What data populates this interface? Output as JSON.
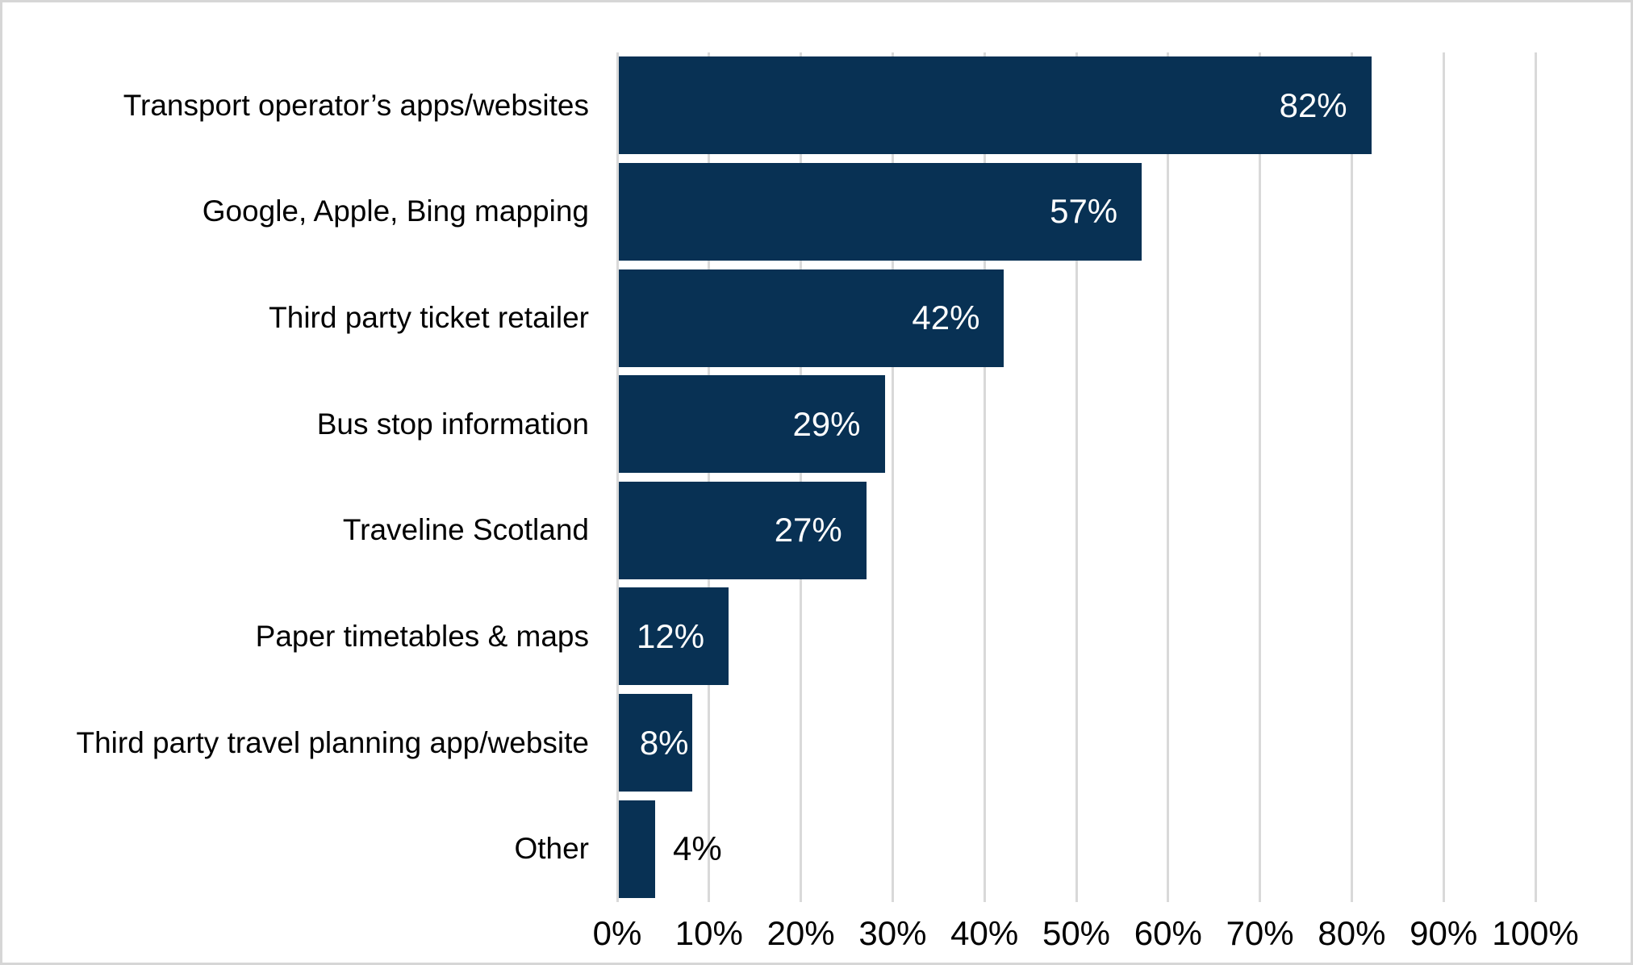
{
  "chart_data": {
    "type": "bar",
    "orientation": "horizontal",
    "title": "",
    "xlabel": "",
    "ylabel": "",
    "categories": [
      "Transport operator’s apps/websites",
      "Google, Apple, Bing mapping",
      "Third party ticket retailer",
      "Bus stop information",
      "Traveline Scotland",
      "Paper timetables & maps",
      "Third party travel planning app/website",
      "Other"
    ],
    "values": [
      82,
      57,
      42,
      29,
      27,
      12,
      8,
      4
    ],
    "value_labels": [
      "82%",
      "57%",
      "42%",
      "29%",
      "27%",
      "12%",
      "8%",
      "4%"
    ],
    "x_tick_labels": [
      "0%",
      "10%",
      "20%",
      "30%",
      "40%",
      "50%",
      "60%",
      "70%",
      "80%",
      "90%",
      "100%"
    ],
    "xlim": [
      0,
      100
    ],
    "x_tick_step": 10,
    "grid": "vertical-only",
    "legend": "none",
    "value_label_placement": "inside-end, outside-end when bar too short",
    "colors": {
      "bar": "#083154",
      "gridline": "#d9d9d9",
      "value_label_inside": "#ffffff",
      "value_label_outside": "#000000",
      "axis_text": "#000000",
      "background": "#ffffff",
      "frame_border": "#d6d6d6"
    }
  }
}
